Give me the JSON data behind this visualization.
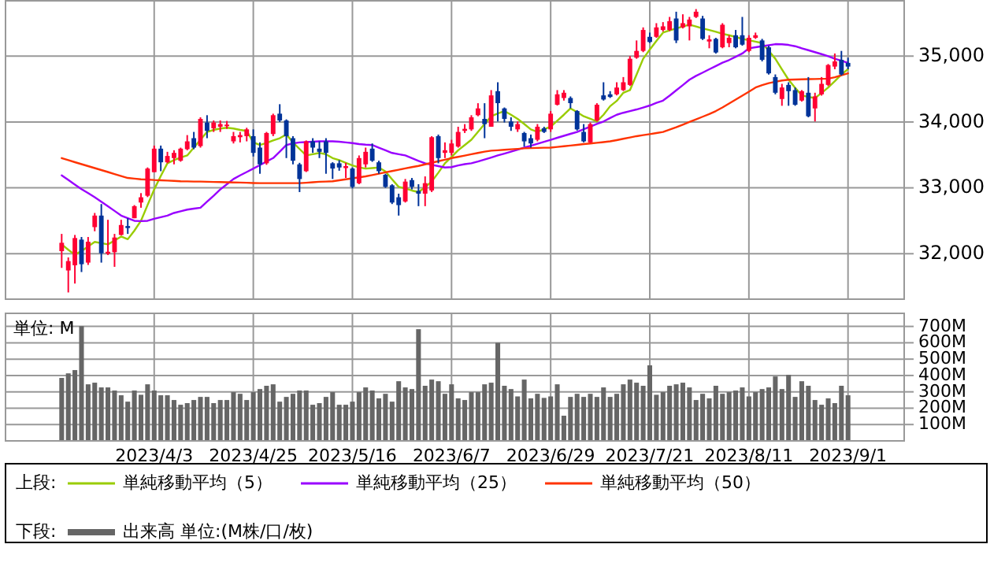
{
  "chart_data": [
    {
      "type": "candlestick",
      "categories": [
        null,
        null,
        null,
        null,
        null,
        null,
        null,
        null,
        null,
        null,
        null,
        null,
        null,
        null,
        "2023/4/3",
        null,
        null,
        null,
        null,
        null,
        null,
        null,
        null,
        null,
        null,
        null,
        null,
        null,
        null,
        "2023/4/25",
        null,
        null,
        null,
        null,
        null,
        null,
        null,
        null,
        null,
        null,
        null,
        null,
        null,
        null,
        "2023/5/16",
        null,
        null,
        null,
        null,
        null,
        null,
        null,
        null,
        null,
        null,
        null,
        null,
        null,
        null,
        "2023/6/7",
        null,
        null,
        null,
        null,
        null,
        null,
        null,
        null,
        null,
        null,
        null,
        null,
        null,
        null,
        "2023/6/29",
        null,
        null,
        null,
        null,
        null,
        null,
        null,
        null,
        null,
        null,
        null,
        null,
        null,
        null,
        "2023/7/21",
        null,
        null,
        null,
        null,
        null,
        null,
        null,
        null,
        null,
        null,
        null,
        null,
        null,
        null,
        "2023/8/11",
        null,
        null,
        null,
        null,
        null,
        null,
        null,
        null,
        null,
        null,
        null,
        null,
        null,
        null,
        "2023/9/1"
      ],
      "ohlc": [
        [
          32039,
          32301,
          31785,
          32166
        ],
        [
          31746,
          31944,
          31412,
          31888
        ],
        [
          31825,
          32285,
          31547,
          32238
        ],
        [
          32214,
          32254,
          31722,
          31841
        ],
        [
          31865,
          32254,
          31830,
          32182
        ],
        [
          32404,
          32619,
          32341,
          32579
        ],
        [
          32579,
          32754,
          31865,
          32007
        ],
        [
          32000,
          32515,
          31980,
          32030
        ],
        [
          32023,
          32301,
          31801,
          32246
        ],
        [
          32285,
          32515,
          32277,
          32436
        ],
        [
          32420,
          32539,
          32301,
          32390
        ],
        [
          32539,
          32738,
          32539,
          32722
        ],
        [
          32777,
          32920,
          32698,
          32857
        ],
        [
          32880,
          33310,
          32860,
          33293
        ],
        [
          33238,
          33642,
          33238,
          33595
        ],
        [
          33595,
          33642,
          33253,
          33388
        ],
        [
          33388,
          33547,
          33373,
          33484
        ],
        [
          33452,
          33571,
          33357,
          33531
        ],
        [
          33412,
          33610,
          33397,
          33595
        ],
        [
          33587,
          33801,
          33571,
          33706
        ],
        [
          33754,
          33849,
          33587,
          33611
        ],
        [
          33634,
          34071,
          33611,
          34047
        ],
        [
          33992,
          34103,
          33754,
          33865
        ],
        [
          33904,
          34023,
          33849,
          33992
        ],
        [
          33928,
          34023,
          33849,
          33968
        ],
        [
          33945,
          34016,
          33897,
          33960
        ],
        [
          33706,
          33849,
          33674,
          33785
        ],
        [
          33769,
          33849,
          33690,
          33801
        ],
        [
          33785,
          33912,
          33706,
          33888
        ],
        [
          33785,
          33888,
          33476,
          33531
        ],
        [
          33611,
          33690,
          33214,
          33357
        ],
        [
          33373,
          33849,
          33350,
          33833
        ],
        [
          33817,
          34126,
          33785,
          34103
        ],
        [
          34126,
          34270,
          34000,
          34023
        ],
        [
          34023,
          34040,
          33452,
          33785
        ],
        [
          33754,
          33785,
          33357,
          33412
        ],
        [
          33357,
          33380,
          32936,
          33134
        ],
        [
          33253,
          33720,
          33240,
          33706
        ],
        [
          33706,
          33754,
          33531,
          33611
        ],
        [
          33595,
          33706,
          33452,
          33547
        ],
        [
          33706,
          33754,
          33214,
          33531
        ],
        [
          33373,
          33389,
          33135,
          33293
        ],
        [
          33373,
          33420,
          33260,
          33309
        ],
        [
          33300,
          33380,
          33150,
          33330
        ],
        [
          33293,
          33309,
          32992,
          33015
        ],
        [
          33070,
          33492,
          33055,
          33452
        ],
        [
          33357,
          33611,
          33309,
          33547
        ],
        [
          33595,
          33674,
          33395,
          33412
        ],
        [
          33388,
          33412,
          33214,
          33253
        ],
        [
          33198,
          33214,
          33000,
          33015
        ],
        [
          33039,
          33055,
          32754,
          32777
        ],
        [
          32857,
          32912,
          32579,
          32738
        ],
        [
          32793,
          33135,
          32777,
          33095
        ],
        [
          33118,
          33150,
          32976,
          33015
        ],
        [
          32952,
          33055,
          32722,
          32912
        ],
        [
          32912,
          33174,
          32722,
          33071
        ],
        [
          32960,
          33785,
          32936,
          33769
        ],
        [
          33785,
          33809,
          33373,
          33452
        ],
        [
          33531,
          33690,
          33452,
          33571
        ],
        [
          33531,
          33730,
          33492,
          33674
        ],
        [
          33627,
          33928,
          33611,
          33849
        ],
        [
          33865,
          33968,
          33833,
          33896
        ],
        [
          33888,
          34103,
          33865,
          34071
        ],
        [
          34103,
          34285,
          34087,
          34206
        ],
        [
          34047,
          34285,
          33754,
          33968
        ],
        [
          33928,
          34484,
          33928,
          34404
        ],
        [
          34468,
          34603,
          34008,
          34286
        ],
        [
          34206,
          34220,
          33992,
          34047
        ],
        [
          34008,
          34071,
          33865,
          33928
        ],
        [
          33888,
          34008,
          33849,
          33968
        ],
        [
          33833,
          33850,
          33627,
          33706
        ],
        [
          33754,
          33809,
          33611,
          33674
        ],
        [
          33730,
          33968,
          33706,
          33928
        ],
        [
          33904,
          33928,
          33833,
          33849
        ],
        [
          33888,
          34166,
          33849,
          34126
        ],
        [
          34262,
          34484,
          34250,
          34420
        ],
        [
          34364,
          34484,
          34325,
          34444
        ],
        [
          34364,
          34388,
          34206,
          34286
        ],
        [
          34166,
          34180,
          33870,
          33888
        ],
        [
          33849,
          33968,
          33690,
          33706
        ],
        [
          33690,
          33992,
          33680,
          33968
        ],
        [
          34023,
          34285,
          34008,
          34262
        ],
        [
          34404,
          34603,
          34325,
          34341
        ],
        [
          34420,
          34468,
          34365,
          34380
        ],
        [
          34420,
          34603,
          34404,
          34523
        ],
        [
          34484,
          34682,
          34470,
          34603
        ],
        [
          34563,
          35000,
          34547,
          34960
        ],
        [
          34976,
          35238,
          34960,
          35079
        ],
        [
          35079,
          35436,
          35060,
          35397
        ],
        [
          35293,
          35357,
          35200,
          35214
        ],
        [
          35293,
          35500,
          35278,
          35436
        ],
        [
          35397,
          35516,
          35373,
          35452
        ],
        [
          35397,
          35595,
          35380,
          35531
        ],
        [
          35571,
          35674,
          35198,
          35238
        ],
        [
          35436,
          35635,
          35420,
          35500
        ],
        [
          35452,
          35595,
          35238,
          35555
        ],
        [
          35595,
          35714,
          35579,
          35674
        ],
        [
          35571,
          35611,
          35245,
          35262
        ],
        [
          35222,
          35317,
          35119,
          35254
        ],
        [
          35262,
          35278,
          35039,
          35055
        ],
        [
          35134,
          35500,
          35119,
          35476
        ],
        [
          35198,
          35317,
          35135,
          35278
        ],
        [
          35317,
          35397,
          35119,
          35134
        ],
        [
          35317,
          35595,
          35158,
          35174
        ],
        [
          35079,
          35317,
          35060,
          35278
        ],
        [
          35278,
          35357,
          35262,
          35317
        ],
        [
          35238,
          35262,
          34920,
          34944
        ],
        [
          35134,
          35158,
          34720,
          34738
        ],
        [
          34682,
          34722,
          34420,
          34444
        ],
        [
          34349,
          34579,
          34246,
          34524
        ],
        [
          34563,
          34603,
          34246,
          34468
        ],
        [
          34484,
          34523,
          34246,
          34262
        ],
        [
          34325,
          34484,
          34310,
          34468
        ],
        [
          34444,
          34682,
          34071,
          34087
        ],
        [
          34206,
          34444,
          34008,
          34389
        ],
        [
          34420,
          34682,
          34400,
          34579
        ],
        [
          34563,
          34880,
          34545,
          34865
        ],
        [
          34841,
          35040,
          34801,
          34920
        ],
        [
          34944,
          35079,
          34706,
          34722
        ],
        [
          34897,
          34976,
          34801,
          34841
        ]
      ],
      "colors": [
        "#ff0033",
        "#ff0033",
        "#ff0033",
        "#003399",
        "#ff0033",
        "#ff0033",
        "#003399",
        "#ff0033",
        "#ff0033",
        "#ff0033",
        "#003399",
        "#ff0033",
        "#ff0033",
        "#ff0033",
        "#ff0033",
        "#003399",
        "#ff0033",
        "#ff0033",
        "#ff0033",
        "#ff0033",
        "#003399",
        "#ff0033",
        "#003399",
        "#ff0033",
        "#ff0033",
        "#ff0033",
        "#ff0033",
        "#ff0033",
        "#ff0033",
        "#003399",
        "#003399",
        "#ff0033",
        "#ff0033",
        "#003399",
        "#003399",
        "#003399",
        "#003399",
        "#ff0033",
        "#003399",
        "#003399",
        "#003399",
        "#003399",
        "#003399",
        "#ff0033",
        "#003399",
        "#ff0033",
        "#ff0033",
        "#003399",
        "#003399",
        "#003399",
        "#003399",
        "#003399",
        "#ff0033",
        "#003399",
        "#003399",
        "#ff0033",
        "#ff0033",
        "#003399",
        "#ff0033",
        "#ff0033",
        "#ff0033",
        "#ff0033",
        "#ff0033",
        "#ff0033",
        "#003399",
        "#ff0033",
        "#003399",
        "#003399",
        "#003399",
        "#ff0033",
        "#003399",
        "#003399",
        "#ff0033",
        "#003399",
        "#ff0033",
        "#ff0033",
        "#ff0033",
        "#003399",
        "#003399",
        "#003399",
        "#ff0033",
        "#ff0033",
        "#003399",
        "#003399",
        "#ff0033",
        "#ff0033",
        "#ff0033",
        "#ff0033",
        "#ff0033",
        "#003399",
        "#ff0033",
        "#ff0033",
        "#ff0033",
        "#003399",
        "#ff0033",
        "#ff0033",
        "#ff0033",
        "#003399",
        "#ff0033",
        "#003399",
        "#ff0033",
        "#ff0033",
        "#003399",
        "#003399",
        "#ff0033",
        "#ff0033",
        "#003399",
        "#003399",
        "#003399",
        "#ff0033",
        "#003399",
        "#003399",
        "#ff0033",
        "#003399",
        "#ff0033",
        "#ff0033",
        "#ff0033",
        "#ff0033",
        "#003399",
        "#003399"
      ],
      "series": [
        {
          "type": "line",
          "name": "単純移動平均（5）",
          "color": "#99cc00",
          "values": [
            32142,
            32060,
            31984,
            32040,
            32110,
            32180,
            32160,
            32142,
            32200,
            32261,
            32220,
            32350,
            32500,
            32740,
            32976,
            33180,
            33373,
            33420,
            33460,
            33492,
            33611,
            33730,
            33849,
            33880,
            33900,
            33912,
            33900,
            33880,
            33865,
            33690,
            33650,
            33680,
            33720,
            33754,
            33810,
            33690,
            33590,
            33492,
            33510,
            33530,
            33510,
            33452,
            33420,
            33380,
            33340,
            33310,
            33293,
            33300,
            33309,
            33250,
            33130,
            33015,
            32990,
            32960,
            32936,
            33010,
            33095,
            33230,
            33373,
            33470,
            33571,
            33650,
            33730,
            33850,
            33970,
            34087,
            34130,
            34166,
            34110,
            34047,
            33970,
            33888,
            33850,
            33890,
            33928,
            34020,
            34110,
            34206,
            34150,
            34087,
            34050,
            34008,
            34110,
            34240,
            34320,
            34444,
            34484,
            34720,
            34960,
            35100,
            35230,
            35357,
            35390,
            35420,
            35450,
            35476,
            35450,
            35420,
            35397,
            35370,
            35340,
            35317,
            35290,
            35262,
            35240,
            35220,
            35198,
            35080,
            34960,
            34800,
            34642,
            34520,
            34404,
            34380,
            34364,
            34440,
            34523,
            34620,
            34722,
            34801
          ]
        },
        {
          "type": "line",
          "name": "単純移動平均（25）",
          "color": "#9900ff",
          "values": [
            33190,
            33120,
            33050,
            32980,
            32920,
            32857,
            32790,
            32720,
            32650,
            32579,
            32540,
            32500,
            32495,
            32500,
            32530,
            32555,
            32579,
            32619,
            32645,
            32670,
            32685,
            32698,
            32790,
            32880,
            32976,
            33055,
            33134,
            33190,
            33240,
            33293,
            33345,
            33400,
            33452,
            33550,
            33650,
            33675,
            33690,
            33695,
            33700,
            33706,
            33706,
            33706,
            33700,
            33690,
            33680,
            33665,
            33655,
            33650,
            33610,
            33570,
            33530,
            33510,
            33492,
            33452,
            33410,
            33373,
            33350,
            33330,
            33309,
            33315,
            33340,
            33360,
            33373,
            33400,
            33430,
            33460,
            33492,
            33520,
            33550,
            33580,
            33611,
            33640,
            33670,
            33700,
            33730,
            33760,
            33790,
            33820,
            33849,
            33890,
            33930,
            33970,
            34008,
            34060,
            34110,
            34140,
            34166,
            34190,
            34220,
            34250,
            34290,
            34325,
            34400,
            34480,
            34560,
            34642,
            34700,
            34750,
            34800,
            34850,
            34900,
            34940,
            34990,
            35040,
            35119,
            35135,
            35150,
            35165,
            35182,
            35180,
            35170,
            35150,
            35119,
            35090,
            35060,
            35030,
            35000,
            34960,
            34930,
            34897
          ]
        },
        {
          "type": "line",
          "name": "単純移動平均（50）",
          "color": "#ff3300",
          "values": [
            33452,
            33420,
            33390,
            33360,
            33330,
            33300,
            33270,
            33240,
            33210,
            33180,
            33150,
            33140,
            33130,
            33125,
            33119,
            33115,
            33110,
            33105,
            33100,
            33098,
            33096,
            33095,
            33092,
            33090,
            33088,
            33085,
            33082,
            33080,
            33077,
            33073,
            33071,
            33071,
            33071,
            33071,
            33071,
            33071,
            33071,
            33078,
            33085,
            33092,
            33096,
            33100,
            33115,
            33130,
            33145,
            33160,
            33174,
            33195,
            33215,
            33235,
            33255,
            33275,
            33295,
            33315,
            33333,
            33357,
            33381,
            33405,
            33428,
            33452,
            33470,
            33490,
            33510,
            33530,
            33550,
            33565,
            33571,
            33578,
            33585,
            33592,
            33600,
            33603,
            33606,
            33609,
            33611,
            33621,
            33632,
            33643,
            33653,
            33664,
            33674,
            33684,
            33694,
            33706,
            33725,
            33745,
            33765,
            33785,
            33800,
            33815,
            33832,
            33849,
            33885,
            33920,
            33960,
            34000,
            34040,
            34080,
            34120,
            34166,
            34220,
            34280,
            34340,
            34400,
            34460,
            34523,
            34560,
            34590,
            34610,
            34630,
            34642,
            34645,
            34648,
            34650,
            34652,
            34655,
            34658,
            34680,
            34710,
            34738
          ]
        }
      ],
      "ylim": [
        31310,
        35840
      ],
      "yticks": [
        {
          "value": 32000,
          "label": "32,000"
        },
        {
          "value": 33000,
          "label": "33,000"
        },
        {
          "value": 34000,
          "label": "34,000"
        },
        {
          "value": 35000,
          "label": "35,000"
        }
      ],
      "grid": true,
      "tick_labels": "y",
      "legend": "bottom",
      "legend_title": "上段:"
    },
    {
      "type": "bar",
      "categories": [
        null,
        null,
        null,
        null,
        null,
        null,
        null,
        null,
        null,
        null,
        null,
        null,
        null,
        null,
        "2023/4/3",
        null,
        null,
        null,
        null,
        null,
        null,
        null,
        null,
        null,
        null,
        null,
        null,
        null,
        null,
        "2023/4/25",
        null,
        null,
        null,
        null,
        null,
        null,
        null,
        null,
        null,
        null,
        null,
        null,
        null,
        null,
        "2023/5/16",
        null,
        null,
        null,
        null,
        null,
        null,
        null,
        null,
        null,
        null,
        null,
        null,
        null,
        null,
        "2023/6/7",
        null,
        null,
        null,
        null,
        null,
        null,
        null,
        null,
        null,
        null,
        null,
        null,
        null,
        null,
        "2023/6/29",
        null,
        null,
        null,
        null,
        null,
        null,
        null,
        null,
        null,
        null,
        null,
        null,
        null,
        null,
        "2023/7/21",
        null,
        null,
        null,
        null,
        null,
        null,
        null,
        null,
        null,
        null,
        null,
        null,
        null,
        null,
        "2023/8/11",
        null,
        null,
        null,
        null,
        null,
        null,
        null,
        null,
        null,
        null,
        null,
        null,
        null,
        null,
        "2023/9/1"
      ],
      "series": [
        {
          "name": "出来高 単位:(M株/口/枚)",
          "color": "#666666",
          "values": [
            385,
            413,
            433,
            702,
            346,
            356,
            327,
            327,
            308,
            279,
            240,
            308,
            282,
            346,
            308,
            279,
            279,
            250,
            221,
            231,
            250,
            269,
            269,
            231,
            250,
            250,
            298,
            288,
            250,
            298,
            317,
            337,
            346,
            240,
            269,
            288,
            308,
            308,
            221,
            231,
            269,
            298,
            221,
            221,
            240,
            298,
            327,
            308,
            260,
            288,
            240,
            365,
            327,
            317,
            683,
            337,
            375,
            365,
            288,
            346,
            260,
            250,
            298,
            298,
            346,
            356,
            600,
            337,
            317,
            272,
            375,
            260,
            288,
            263,
            272,
            346,
            154,
            269,
            288,
            269,
            288,
            269,
            327,
            269,
            288,
            346,
            375,
            356,
            337,
            462,
            282,
            298,
            337,
            346,
            356,
            327,
            250,
            288,
            260,
            337,
            288,
            298,
            308,
            327,
            272,
            298,
            317,
            327,
            394,
            317,
            404,
            269,
            365,
            337,
            250,
            221,
            260,
            231,
            337,
            279
          ]
        }
      ],
      "ylim": [
        0,
        780
      ],
      "yticks": [
        {
          "value": 100,
          "label": "100M"
        },
        {
          "value": 200,
          "label": "200M"
        },
        {
          "value": 300,
          "label": "300M"
        },
        {
          "value": 400,
          "label": "400M"
        },
        {
          "value": 500,
          "label": "500M"
        },
        {
          "value": 600,
          "label": "600M"
        },
        {
          "value": 700,
          "label": "700M"
        }
      ],
      "grid": true,
      "legend": "bottom",
      "legend_title": "下段:",
      "annotations": [
        "単位: M"
      ]
    }
  ]
}
